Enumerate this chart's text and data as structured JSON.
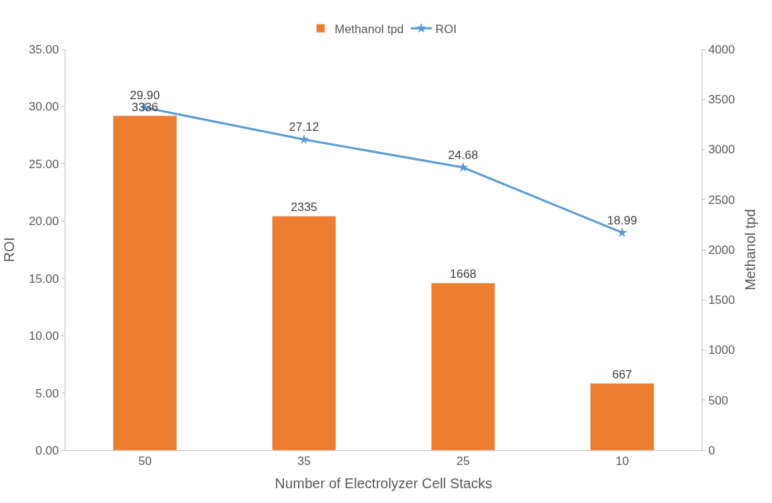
{
  "chart_data": {
    "type": "bar",
    "xlabel": "Number of Electrolyzer Cell Stacks",
    "ylabel": "ROI",
    "y2label": "Methanol tpd",
    "categories": [
      "50",
      "35",
      "25",
      "10"
    ],
    "series": [
      {
        "name": "Methanol tpd",
        "axis": "y2",
        "color": "#ed7d31",
        "values": [
          3336,
          2335,
          1668,
          667
        ],
        "value_labels": [
          "3336",
          "2335",
          "1668",
          "667"
        ]
      },
      {
        "name": "ROI",
        "type": "line",
        "color": "#5b9bd5",
        "values": [
          29.9,
          27.12,
          24.68,
          18.99
        ],
        "value_labels": [
          "29.90",
          "27.12",
          "24.68",
          "18.99"
        ],
        "marker": "star",
        "line_style": "solid"
      }
    ],
    "ylim": [
      0,
      35
    ],
    "yticks": [
      {
        "value": 0,
        "label": "0.00"
      },
      {
        "value": 5,
        "label": "5.00"
      },
      {
        "value": 10,
        "label": "10.00"
      },
      {
        "value": 15,
        "label": "15.00"
      },
      {
        "value": 20,
        "label": "20.00"
      },
      {
        "value": 25,
        "label": "25.00"
      },
      {
        "value": 30,
        "label": "30.00"
      },
      {
        "value": 35,
        "label": "35.00"
      }
    ],
    "y2lim": [
      0,
      4000
    ],
    "y2ticks": [
      0,
      500,
      1000,
      1500,
      2000,
      2500,
      3000,
      3500,
      4000
    ],
    "legend": "top"
  }
}
